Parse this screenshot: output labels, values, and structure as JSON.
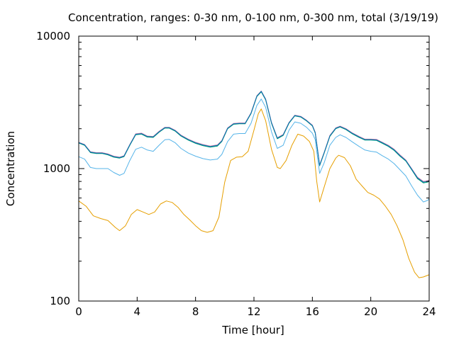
{
  "chart_data": {
    "type": "line",
    "title": "Concentration, ranges: 0-30 nm, 0-100 nm, 0-300 nm, total (3/19/19)",
    "xlabel": "Time [hour]",
    "ylabel": "Concentration",
    "xlim": [
      0,
      24
    ],
    "ylim": [
      100,
      10000
    ],
    "yscale": "log",
    "xticks": [
      0,
      4,
      8,
      12,
      16,
      20,
      24
    ],
    "xtick_labels": [
      "0",
      "4",
      "8",
      "12",
      "16",
      "20",
      "24"
    ],
    "yticks": [
      100,
      1000,
      10000
    ],
    "ytick_labels": [
      "100",
      "1000",
      "10000"
    ],
    "grid": false,
    "legend": "none",
    "series": [
      {
        "color": "#e69f00",
        "points": [
          [
            0,
            570
          ],
          [
            0.5,
            520
          ],
          [
            1,
            440
          ],
          [
            1.5,
            420
          ],
          [
            2,
            405
          ],
          [
            2.5,
            360
          ],
          [
            2.8,
            340
          ],
          [
            3.2,
            370
          ],
          [
            3.6,
            450
          ],
          [
            4,
            490
          ],
          [
            4.4,
            470
          ],
          [
            4.8,
            450
          ],
          [
            5.2,
            470
          ],
          [
            5.6,
            540
          ],
          [
            6,
            570
          ],
          [
            6.4,
            555
          ],
          [
            6.8,
            510
          ],
          [
            7.2,
            450
          ],
          [
            7.6,
            410
          ],
          [
            8,
            370
          ],
          [
            8.4,
            340
          ],
          [
            8.8,
            330
          ],
          [
            9.2,
            340
          ],
          [
            9.6,
            430
          ],
          [
            10,
            790
          ],
          [
            10.4,
            1150
          ],
          [
            10.8,
            1220
          ],
          [
            11.2,
            1230
          ],
          [
            11.6,
            1350
          ],
          [
            12,
            1950
          ],
          [
            12.3,
            2600
          ],
          [
            12.5,
            2820
          ],
          [
            12.8,
            2300
          ],
          [
            13.2,
            1400
          ],
          [
            13.6,
            1020
          ],
          [
            13.8,
            1000
          ],
          [
            14.2,
            1150
          ],
          [
            14.6,
            1500
          ],
          [
            15,
            1820
          ],
          [
            15.4,
            1760
          ],
          [
            15.8,
            1600
          ],
          [
            16.1,
            1350
          ],
          [
            16.3,
            800
          ],
          [
            16.5,
            560
          ],
          [
            16.8,
            720
          ],
          [
            17.2,
            1000
          ],
          [
            17.6,
            1200
          ],
          [
            17.8,
            1260
          ],
          [
            18.2,
            1210
          ],
          [
            18.6,
            1050
          ],
          [
            19,
            830
          ],
          [
            19.4,
            740
          ],
          [
            19.8,
            660
          ],
          [
            20.2,
            630
          ],
          [
            20.6,
            590
          ],
          [
            21,
            520
          ],
          [
            21.4,
            450
          ],
          [
            21.8,
            370
          ],
          [
            22.2,
            290
          ],
          [
            22.6,
            210
          ],
          [
            23,
            165
          ],
          [
            23.3,
            150
          ],
          [
            23.6,
            152
          ],
          [
            24,
            158
          ]
        ]
      },
      {
        "color": "#56b4e9",
        "points": [
          [
            0,
            1230
          ],
          [
            0.4,
            1180
          ],
          [
            0.8,
            1020
          ],
          [
            1.2,
            1000
          ],
          [
            1.6,
            1000
          ],
          [
            2,
            1000
          ],
          [
            2.4,
            935
          ],
          [
            2.8,
            890
          ],
          [
            3.1,
            920
          ],
          [
            3.5,
            1150
          ],
          [
            3.9,
            1400
          ],
          [
            4.3,
            1450
          ],
          [
            4.7,
            1380
          ],
          [
            5.1,
            1350
          ],
          [
            5.5,
            1500
          ],
          [
            5.9,
            1650
          ],
          [
            6.2,
            1660
          ],
          [
            6.6,
            1570
          ],
          [
            7,
            1420
          ],
          [
            7.5,
            1310
          ],
          [
            8,
            1240
          ],
          [
            8.5,
            1190
          ],
          [
            9,
            1160
          ],
          [
            9.5,
            1180
          ],
          [
            9.8,
            1280
          ],
          [
            10.2,
            1600
          ],
          [
            10.6,
            1820
          ],
          [
            11,
            1840
          ],
          [
            11.4,
            1840
          ],
          [
            11.8,
            2200
          ],
          [
            12.2,
            3000
          ],
          [
            12.5,
            3350
          ],
          [
            12.8,
            2900
          ],
          [
            13.2,
            1900
          ],
          [
            13.6,
            1420
          ],
          [
            14,
            1500
          ],
          [
            14.4,
            1950
          ],
          [
            14.8,
            2250
          ],
          [
            15.2,
            2200
          ],
          [
            15.6,
            2050
          ],
          [
            16,
            1850
          ],
          [
            16.2,
            1650
          ],
          [
            16.5,
            920
          ],
          [
            16.8,
            1100
          ],
          [
            17.2,
            1500
          ],
          [
            17.6,
            1720
          ],
          [
            17.9,
            1800
          ],
          [
            18.3,
            1720
          ],
          [
            18.7,
            1600
          ],
          [
            19.2,
            1470
          ],
          [
            19.6,
            1380
          ],
          [
            20,
            1350
          ],
          [
            20.4,
            1330
          ],
          [
            20.8,
            1250
          ],
          [
            21.2,
            1180
          ],
          [
            21.6,
            1090
          ],
          [
            22,
            980
          ],
          [
            22.4,
            880
          ],
          [
            22.8,
            740
          ],
          [
            23.2,
            630
          ],
          [
            23.6,
            560
          ],
          [
            23.9,
            575
          ],
          [
            24,
            595
          ]
        ]
      },
      {
        "color": "#009e73",
        "points": [
          [
            0,
            1560
          ],
          [
            0.4,
            1500
          ],
          [
            0.8,
            1320
          ],
          [
            1.2,
            1300
          ],
          [
            1.6,
            1300
          ],
          [
            2,
            1270
          ],
          [
            2.4,
            1220
          ],
          [
            2.8,
            1200
          ],
          [
            3.1,
            1230
          ],
          [
            3.5,
            1500
          ],
          [
            3.9,
            1800
          ],
          [
            4.3,
            1820
          ],
          [
            4.7,
            1730
          ],
          [
            5.1,
            1720
          ],
          [
            5.5,
            1880
          ],
          [
            5.9,
            2020
          ],
          [
            6.2,
            2020
          ],
          [
            6.6,
            1920
          ],
          [
            7,
            1760
          ],
          [
            7.5,
            1640
          ],
          [
            8,
            1550
          ],
          [
            8.5,
            1490
          ],
          [
            9,
            1450
          ],
          [
            9.5,
            1480
          ],
          [
            9.8,
            1600
          ],
          [
            10.2,
            2000
          ],
          [
            10.6,
            2160
          ],
          [
            11,
            2180
          ],
          [
            11.4,
            2180
          ],
          [
            11.8,
            2600
          ],
          [
            12.2,
            3500
          ],
          [
            12.5,
            3800
          ],
          [
            12.8,
            3300
          ],
          [
            13.2,
            2200
          ],
          [
            13.6,
            1680
          ],
          [
            14,
            1780
          ],
          [
            14.4,
            2200
          ],
          [
            14.8,
            2500
          ],
          [
            15.2,
            2450
          ],
          [
            15.6,
            2290
          ],
          [
            16,
            2100
          ],
          [
            16.2,
            1850
          ],
          [
            16.5,
            1050
          ],
          [
            16.8,
            1300
          ],
          [
            17.2,
            1750
          ],
          [
            17.6,
            2000
          ],
          [
            17.9,
            2060
          ],
          [
            18.3,
            1970
          ],
          [
            18.7,
            1840
          ],
          [
            19.2,
            1720
          ],
          [
            19.6,
            1640
          ],
          [
            20,
            1640
          ],
          [
            20.4,
            1630
          ],
          [
            20.8,
            1550
          ],
          [
            21.2,
            1470
          ],
          [
            21.6,
            1370
          ],
          [
            22,
            1240
          ],
          [
            22.4,
            1140
          ],
          [
            22.8,
            980
          ],
          [
            23.2,
            840
          ],
          [
            23.6,
            780
          ],
          [
            23.9,
            790
          ],
          [
            24,
            800
          ]
        ]
      },
      {
        "color": "#cc79a7",
        "points": [
          [
            0,
            1580
          ],
          [
            0.4,
            1520
          ],
          [
            0.8,
            1340
          ],
          [
            1.2,
            1320
          ],
          [
            1.6,
            1320
          ],
          [
            2,
            1290
          ],
          [
            2.4,
            1240
          ],
          [
            2.8,
            1220
          ],
          [
            3.1,
            1250
          ],
          [
            3.5,
            1520
          ],
          [
            3.9,
            1830
          ],
          [
            4.3,
            1850
          ],
          [
            4.7,
            1760
          ],
          [
            5.1,
            1750
          ],
          [
            5.5,
            1910
          ],
          [
            5.9,
            2050
          ],
          [
            6.2,
            2050
          ],
          [
            6.6,
            1950
          ],
          [
            7,
            1790
          ],
          [
            7.5,
            1670
          ],
          [
            8,
            1580
          ],
          [
            8.5,
            1520
          ],
          [
            9,
            1480
          ],
          [
            9.5,
            1510
          ],
          [
            9.8,
            1630
          ],
          [
            10.2,
            2030
          ],
          [
            10.6,
            2190
          ],
          [
            11,
            2210
          ],
          [
            11.4,
            2210
          ],
          [
            11.8,
            2640
          ],
          [
            12.2,
            3550
          ],
          [
            12.5,
            3850
          ],
          [
            12.8,
            3350
          ],
          [
            13.2,
            2240
          ],
          [
            13.6,
            1710
          ],
          [
            14,
            1810
          ],
          [
            14.4,
            2230
          ],
          [
            14.8,
            2530
          ],
          [
            15.2,
            2480
          ],
          [
            15.6,
            2320
          ],
          [
            16,
            2130
          ],
          [
            16.2,
            1880
          ],
          [
            16.5,
            1070
          ],
          [
            16.8,
            1320
          ],
          [
            17.2,
            1780
          ],
          [
            17.6,
            2030
          ],
          [
            17.9,
            2090
          ],
          [
            18.3,
            2000
          ],
          [
            18.7,
            1870
          ],
          [
            19.2,
            1750
          ],
          [
            19.6,
            1670
          ],
          [
            20,
            1670
          ],
          [
            20.4,
            1660
          ],
          [
            20.8,
            1580
          ],
          [
            21.2,
            1500
          ],
          [
            21.6,
            1400
          ],
          [
            22,
            1270
          ],
          [
            22.4,
            1160
          ],
          [
            22.8,
            1000
          ],
          [
            23.2,
            860
          ],
          [
            23.6,
            800
          ],
          [
            23.9,
            810
          ],
          [
            24,
            820
          ]
        ]
      },
      {
        "color": "#0072b2",
        "points": [
          [
            0,
            1570
          ],
          [
            0.4,
            1510
          ],
          [
            0.8,
            1330
          ],
          [
            1.2,
            1310
          ],
          [
            1.6,
            1310
          ],
          [
            2,
            1280
          ],
          [
            2.4,
            1230
          ],
          [
            2.8,
            1210
          ],
          [
            3.1,
            1240
          ],
          [
            3.5,
            1510
          ],
          [
            3.9,
            1815
          ],
          [
            4.3,
            1835
          ],
          [
            4.7,
            1745
          ],
          [
            5.1,
            1735
          ],
          [
            5.5,
            1895
          ],
          [
            5.9,
            2035
          ],
          [
            6.2,
            2035
          ],
          [
            6.6,
            1935
          ],
          [
            7,
            1775
          ],
          [
            7.5,
            1655
          ],
          [
            8,
            1565
          ],
          [
            8.5,
            1505
          ],
          [
            9,
            1465
          ],
          [
            9.5,
            1495
          ],
          [
            9.8,
            1615
          ],
          [
            10.2,
            2015
          ],
          [
            10.6,
            2175
          ],
          [
            11,
            2195
          ],
          [
            11.4,
            2195
          ],
          [
            11.8,
            2620
          ],
          [
            12.2,
            3525
          ],
          [
            12.5,
            3825
          ],
          [
            12.8,
            3325
          ],
          [
            13.2,
            2220
          ],
          [
            13.6,
            1695
          ],
          [
            14,
            1795
          ],
          [
            14.4,
            2215
          ],
          [
            14.8,
            2515
          ],
          [
            15.2,
            2465
          ],
          [
            15.6,
            2305
          ],
          [
            16,
            2115
          ],
          [
            16.2,
            1865
          ],
          [
            16.5,
            1060
          ],
          [
            16.8,
            1310
          ],
          [
            17.2,
            1765
          ],
          [
            17.6,
            2015
          ],
          [
            17.9,
            2075
          ],
          [
            18.3,
            1985
          ],
          [
            18.7,
            1855
          ],
          [
            19.2,
            1735
          ],
          [
            19.6,
            1655
          ],
          [
            20,
            1655
          ],
          [
            20.4,
            1645
          ],
          [
            20.8,
            1565
          ],
          [
            21.2,
            1485
          ],
          [
            21.6,
            1385
          ],
          [
            22,
            1255
          ],
          [
            22.4,
            1150
          ],
          [
            22.8,
            990
          ],
          [
            23.2,
            850
          ],
          [
            23.6,
            790
          ],
          [
            23.9,
            800
          ],
          [
            24,
            810
          ]
        ]
      }
    ]
  }
}
